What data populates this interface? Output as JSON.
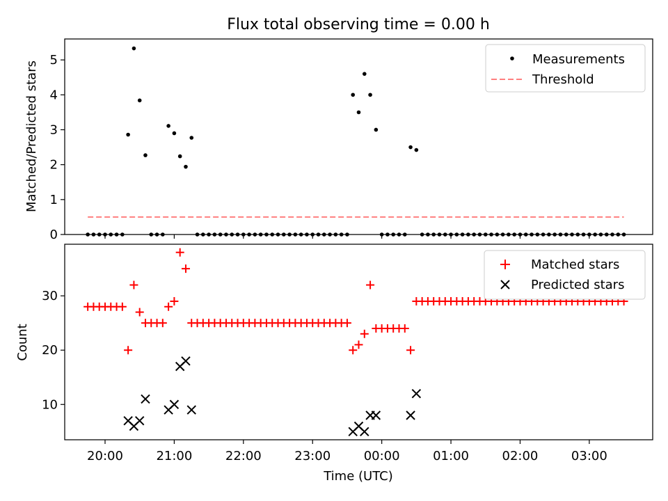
{
  "title": "Flux total observing time = 0.00 h",
  "xlabel": "Time (UTC)",
  "x_ticks": [
    "20:00",
    "21:00",
    "22:00",
    "23:00",
    "00:00",
    "01:00",
    "02:00",
    "03:00"
  ],
  "colors": {
    "measurement": "#000000",
    "threshold": "#ff7f7f",
    "matched": "#ff0000",
    "predicted": "#000000"
  },
  "chart_data": [
    {
      "type": "scatter",
      "ylabel": "Matched/Predicted stars",
      "ylim": [
        0,
        5.6
      ],
      "y_ticks": [
        "0",
        "1",
        "2",
        "3",
        "4",
        "5"
      ],
      "x_axis": "time of day (UTC), 19:25 to 03:55",
      "legend_position": "top-right",
      "series": [
        {
          "name": "Measurements",
          "marker": "dot",
          "points": [
            [
              "19:45",
              0
            ],
            [
              "19:50",
              0
            ],
            [
              "19:55",
              0
            ],
            [
              "20:00",
              0
            ],
            [
              "20:05",
              0
            ],
            [
              "20:10",
              0
            ],
            [
              "20:15",
              0
            ],
            [
              "20:20",
              2.86
            ],
            [
              "20:25",
              5.33
            ],
            [
              "20:30",
              3.84
            ],
            [
              "20:35",
              2.27
            ],
            [
              "20:40",
              0
            ],
            [
              "20:45",
              0
            ],
            [
              "20:50",
              0
            ],
            [
              "20:55",
              3.11
            ],
            [
              "21:00",
              2.9
            ],
            [
              "21:05",
              2.24
            ],
            [
              "21:10",
              1.94
            ],
            [
              "21:15",
              2.77
            ],
            [
              "21:20",
              0
            ],
            [
              "21:25",
              0
            ],
            [
              "21:30",
              0
            ],
            [
              "21:35",
              0
            ],
            [
              "21:40",
              0
            ],
            [
              "21:45",
              0
            ],
            [
              "21:50",
              0
            ],
            [
              "21:55",
              0
            ],
            [
              "22:00",
              0
            ],
            [
              "22:05",
              0
            ],
            [
              "22:10",
              0
            ],
            [
              "22:15",
              0
            ],
            [
              "22:20",
              0
            ],
            [
              "22:25",
              0
            ],
            [
              "22:30",
              0
            ],
            [
              "22:35",
              0
            ],
            [
              "22:40",
              0
            ],
            [
              "22:45",
              0
            ],
            [
              "22:50",
              0
            ],
            [
              "22:55",
              0
            ],
            [
              "23:00",
              0
            ],
            [
              "23:05",
              0
            ],
            [
              "23:10",
              0
            ],
            [
              "23:15",
              0
            ],
            [
              "23:20",
              0
            ],
            [
              "23:25",
              0
            ],
            [
              "23:30",
              0
            ],
            [
              "23:35",
              4.0
            ],
            [
              "23:40",
              3.5
            ],
            [
              "23:45",
              4.6
            ],
            [
              "23:50",
              4.0
            ],
            [
              "23:55",
              3.0
            ],
            [
              "00:00",
              0
            ],
            [
              "00:05",
              0
            ],
            [
              "00:10",
              0
            ],
            [
              "00:15",
              0
            ],
            [
              "00:20",
              0
            ],
            [
              "00:25",
              2.5
            ],
            [
              "00:30",
              2.42
            ],
            [
              "00:35",
              0
            ],
            [
              "00:40",
              0
            ],
            [
              "00:45",
              0
            ],
            [
              "00:50",
              0
            ],
            [
              "00:55",
              0
            ],
            [
              "01:00",
              0
            ],
            [
              "01:05",
              0
            ],
            [
              "01:10",
              0
            ],
            [
              "01:15",
              0
            ],
            [
              "01:20",
              0
            ],
            [
              "01:25",
              0
            ],
            [
              "01:30",
              0
            ],
            [
              "01:35",
              0
            ],
            [
              "01:40",
              0
            ],
            [
              "01:45",
              0
            ],
            [
              "01:50",
              0
            ],
            [
              "01:55",
              0
            ],
            [
              "02:00",
              0
            ],
            [
              "02:05",
              0
            ],
            [
              "02:10",
              0
            ],
            [
              "02:15",
              0
            ],
            [
              "02:20",
              0
            ],
            [
              "02:25",
              0
            ],
            [
              "02:30",
              0
            ],
            [
              "02:35",
              0
            ],
            [
              "02:40",
              0
            ],
            [
              "02:45",
              0
            ],
            [
              "02:50",
              0
            ],
            [
              "02:55",
              0
            ],
            [
              "03:00",
              0
            ],
            [
              "03:05",
              0
            ],
            [
              "03:10",
              0
            ],
            [
              "03:15",
              0
            ],
            [
              "03:20",
              0
            ],
            [
              "03:25",
              0
            ],
            [
              "03:30",
              0
            ]
          ]
        },
        {
          "name": "Threshold",
          "marker": "dashed-line",
          "points": [
            [
              "19:45",
              0.5
            ],
            [
              "03:30",
              0.5
            ]
          ]
        }
      ]
    },
    {
      "type": "scatter",
      "ylabel": "Count",
      "ylim": [
        3.5,
        39.5
      ],
      "y_ticks": [
        "10",
        "20",
        "30"
      ],
      "x_axis": "time of day (UTC), 19:25 to 03:55",
      "legend_position": "top-right",
      "series": [
        {
          "name": "Matched stars",
          "marker": "plus",
          "points": [
            [
              "19:45",
              28
            ],
            [
              "19:50",
              28
            ],
            [
              "19:55",
              28
            ],
            [
              "20:00",
              28
            ],
            [
              "20:05",
              28
            ],
            [
              "20:10",
              28
            ],
            [
              "20:15",
              28
            ],
            [
              "20:20",
              20
            ],
            [
              "20:25",
              32
            ],
            [
              "20:30",
              27
            ],
            [
              "20:35",
              25
            ],
            [
              "20:40",
              25
            ],
            [
              "20:45",
              25
            ],
            [
              "20:50",
              25
            ],
            [
              "20:55",
              28
            ],
            [
              "21:00",
              29
            ],
            [
              "21:05",
              38
            ],
            [
              "21:10",
              35
            ],
            [
              "21:15",
              25
            ],
            [
              "21:20",
              25
            ],
            [
              "21:25",
              25
            ],
            [
              "21:30",
              25
            ],
            [
              "21:35",
              25
            ],
            [
              "21:40",
              25
            ],
            [
              "21:45",
              25
            ],
            [
              "21:50",
              25
            ],
            [
              "21:55",
              25
            ],
            [
              "22:00",
              25
            ],
            [
              "22:05",
              25
            ],
            [
              "22:10",
              25
            ],
            [
              "22:15",
              25
            ],
            [
              "22:20",
              25
            ],
            [
              "22:25",
              25
            ],
            [
              "22:30",
              25
            ],
            [
              "22:35",
              25
            ],
            [
              "22:40",
              25
            ],
            [
              "22:45",
              25
            ],
            [
              "22:50",
              25
            ],
            [
              "22:55",
              25
            ],
            [
              "23:00",
              25
            ],
            [
              "23:05",
              25
            ],
            [
              "23:10",
              25
            ],
            [
              "23:15",
              25
            ],
            [
              "23:20",
              25
            ],
            [
              "23:25",
              25
            ],
            [
              "23:30",
              25
            ],
            [
              "23:35",
              20
            ],
            [
              "23:40",
              21
            ],
            [
              "23:45",
              23
            ],
            [
              "23:50",
              32
            ],
            [
              "23:55",
              24
            ],
            [
              "00:00",
              24
            ],
            [
              "00:05",
              24
            ],
            [
              "00:10",
              24
            ],
            [
              "00:15",
              24
            ],
            [
              "00:20",
              24
            ],
            [
              "00:25",
              20
            ],
            [
              "00:30",
              29
            ],
            [
              "00:35",
              29
            ],
            [
              "00:40",
              29
            ],
            [
              "00:45",
              29
            ],
            [
              "00:50",
              29
            ],
            [
              "00:55",
              29
            ],
            [
              "01:00",
              29
            ],
            [
              "01:05",
              29
            ],
            [
              "01:10",
              29
            ],
            [
              "01:15",
              29
            ],
            [
              "01:20",
              29
            ],
            [
              "01:25",
              29
            ],
            [
              "01:30",
              29
            ],
            [
              "01:35",
              29
            ],
            [
              "01:40",
              29
            ],
            [
              "01:45",
              29
            ],
            [
              "01:50",
              29
            ],
            [
              "01:55",
              29
            ],
            [
              "02:00",
              29
            ],
            [
              "02:05",
              29
            ],
            [
              "02:10",
              29
            ],
            [
              "02:15",
              29
            ],
            [
              "02:20",
              29
            ],
            [
              "02:25",
              29
            ],
            [
              "02:30",
              29
            ],
            [
              "02:35",
              29
            ],
            [
              "02:40",
              29
            ],
            [
              "02:45",
              29
            ],
            [
              "02:50",
              29
            ],
            [
              "02:55",
              29
            ],
            [
              "03:00",
              29
            ],
            [
              "03:05",
              29
            ],
            [
              "03:10",
              29
            ],
            [
              "03:15",
              29
            ],
            [
              "03:20",
              29
            ],
            [
              "03:25",
              29
            ],
            [
              "03:30",
              29
            ]
          ]
        },
        {
          "name": "Predicted stars",
          "marker": "x",
          "points": [
            [
              "20:20",
              7
            ],
            [
              "20:25",
              6
            ],
            [
              "20:30",
              7
            ],
            [
              "20:35",
              11
            ],
            [
              "20:55",
              9
            ],
            [
              "21:00",
              10
            ],
            [
              "21:05",
              17
            ],
            [
              "21:10",
              18
            ],
            [
              "21:15",
              9
            ],
            [
              "23:35",
              5
            ],
            [
              "23:40",
              6
            ],
            [
              "23:45",
              5
            ],
            [
              "23:50",
              8
            ],
            [
              "23:55",
              8
            ],
            [
              "00:25",
              8
            ],
            [
              "00:30",
              12
            ]
          ]
        }
      ]
    }
  ]
}
